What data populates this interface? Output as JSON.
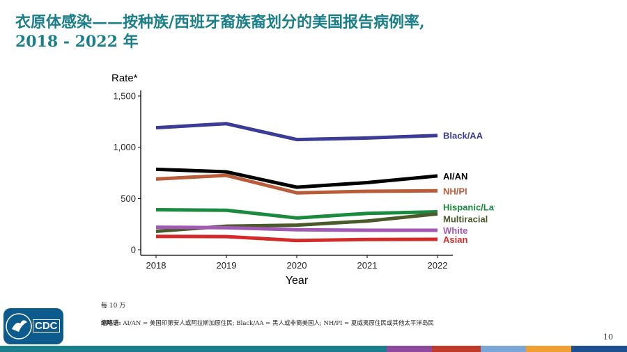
{
  "slide": {
    "title_line1": "衣原体感染——按种族/西班牙裔族裔划分的美国报告病例率,",
    "title_line2": "2018 - 2022 年",
    "footnote": "每 10 万",
    "abbrev_label": "缩略语:",
    "abbrev_text": "AI/AN = 美国印第安人或阿拉斯加原住民; Black/AA = 黑人或非裔美国人; NH/PI = 夏威夷原住民或其他太平洋岛民",
    "page_number": "10",
    "logo_text": "CDC",
    "stripe_colors": [
      "#1a7f8a",
      "#8e4a9c",
      "#c0392b",
      "#7aa7d8",
      "#f0a033",
      "#1d4f91"
    ]
  },
  "chart_data": {
    "type": "line",
    "ylabel": "Rate*",
    "xlabel": "Year",
    "x": [
      2018,
      2019,
      2020,
      2021,
      2022
    ],
    "ylim": [
      0,
      1500
    ],
    "yticks": [
      0,
      500,
      1000,
      1500
    ],
    "ytick_labels": [
      "0",
      "500",
      "1,000",
      "1,500"
    ],
    "series": [
      {
        "name": "Black/AA",
        "color": "#3a3c96",
        "values": [
          1190,
          1230,
          1075,
          1090,
          1115
        ]
      },
      {
        "name": "AI/AN",
        "color": "#000000",
        "values": [
          785,
          760,
          610,
          655,
          720
        ]
      },
      {
        "name": "NH/PI",
        "color": "#b85c3a",
        "values": [
          690,
          725,
          555,
          570,
          575
        ]
      },
      {
        "name": "Hispanic/Latino",
        "color": "#1a8a3e",
        "values": [
          390,
          385,
          310,
          355,
          370
        ]
      },
      {
        "name": "Multiracial",
        "color": "#4a5a2a",
        "values": [
          180,
          230,
          240,
          280,
          350
        ]
      },
      {
        "name": "White",
        "color": "#a259b5",
        "values": [
          220,
          215,
          195,
          190,
          190
        ]
      },
      {
        "name": "Asian",
        "color": "#d42a2a",
        "values": [
          130,
          128,
          90,
          100,
          102
        ]
      }
    ]
  }
}
